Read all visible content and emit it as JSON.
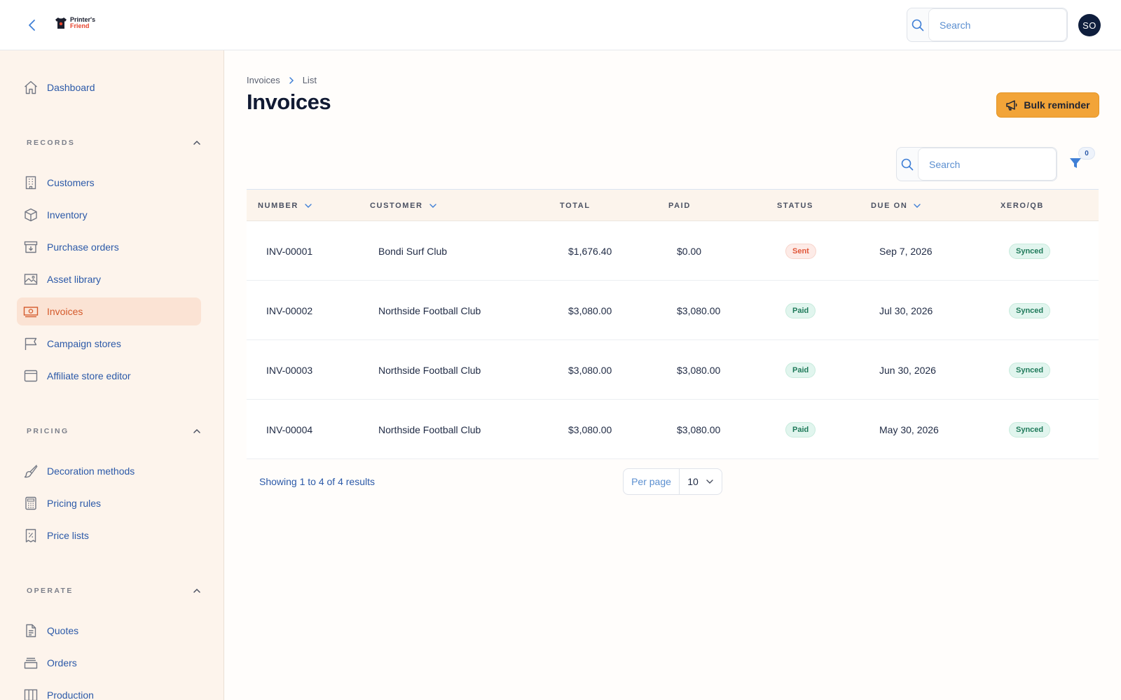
{
  "topbar": {
    "logo_line1": "Printer's",
    "logo_line2": "Friend",
    "search_placeholder": "Search",
    "avatar_initials": "SO"
  },
  "sidebar": {
    "dashboard": {
      "label": "Dashboard",
      "icon": "home-icon"
    },
    "sections": [
      {
        "title": "RECORDS",
        "items": [
          {
            "label": "Customers",
            "icon": "building-icon"
          },
          {
            "label": "Inventory",
            "icon": "box-icon"
          },
          {
            "label": "Purchase orders",
            "icon": "archive-icon"
          },
          {
            "label": "Asset library",
            "icon": "image-icon"
          },
          {
            "label": "Invoices",
            "icon": "banknote-icon",
            "active": true
          },
          {
            "label": "Campaign stores",
            "icon": "flag-icon"
          },
          {
            "label": "Affiliate store editor",
            "icon": "browser-icon"
          }
        ]
      },
      {
        "title": "PRICING",
        "items": [
          {
            "label": "Decoration methods",
            "icon": "brush-icon"
          },
          {
            "label": "Pricing rules",
            "icon": "calculator-icon"
          },
          {
            "label": "Price lists",
            "icon": "receipt-percent-icon"
          }
        ]
      },
      {
        "title": "OPERATE",
        "items": [
          {
            "label": "Quotes",
            "icon": "document-icon"
          },
          {
            "label": "Orders",
            "icon": "tray-icon"
          },
          {
            "label": "Production",
            "icon": "columns-icon"
          }
        ]
      }
    ]
  },
  "main": {
    "breadcrumb": {
      "root": "Invoices",
      "current": "List"
    },
    "title": "Invoices",
    "bulk_reminder_label": "Bulk reminder",
    "table_search_placeholder": "Search",
    "filter_count": "0",
    "columns": [
      "NUMBER",
      "CUSTOMER",
      "TOTAL",
      "PAID",
      "STATUS",
      "DUE ON",
      "XERO/QB"
    ],
    "rows": [
      {
        "number": "INV-00001",
        "customer": "Bondi Surf Club",
        "total": "$1,676.40",
        "paid": "$0.00",
        "status": "Sent",
        "status_kind": "sent",
        "due_on": "Sep 7, 2026",
        "sync": "Synced"
      },
      {
        "number": "INV-00002",
        "customer": "Northside Football Club",
        "total": "$3,080.00",
        "paid": "$3,080.00",
        "status": "Paid",
        "status_kind": "paid",
        "due_on": "Jul 30, 2026",
        "sync": "Synced"
      },
      {
        "number": "INV-00003",
        "customer": "Northside Football Club",
        "total": "$3,080.00",
        "paid": "$3,080.00",
        "status": "Paid",
        "status_kind": "paid",
        "due_on": "Jun 30, 2026",
        "sync": "Synced"
      },
      {
        "number": "INV-00004",
        "customer": "Northside Football Club",
        "total": "$3,080.00",
        "paid": "$3,080.00",
        "status": "Paid",
        "status_kind": "paid",
        "due_on": "May 30, 2026",
        "sync": "Synced"
      }
    ],
    "showing_text": "Showing 1 to 4 of 4 results",
    "per_page_label": "Per page",
    "per_page_value": "10"
  },
  "colors": {
    "accent": "#f2a438",
    "link": "#2b59a8",
    "active_bg": "#fbe3d4",
    "sidebar_bg": "#fdf4ec"
  }
}
